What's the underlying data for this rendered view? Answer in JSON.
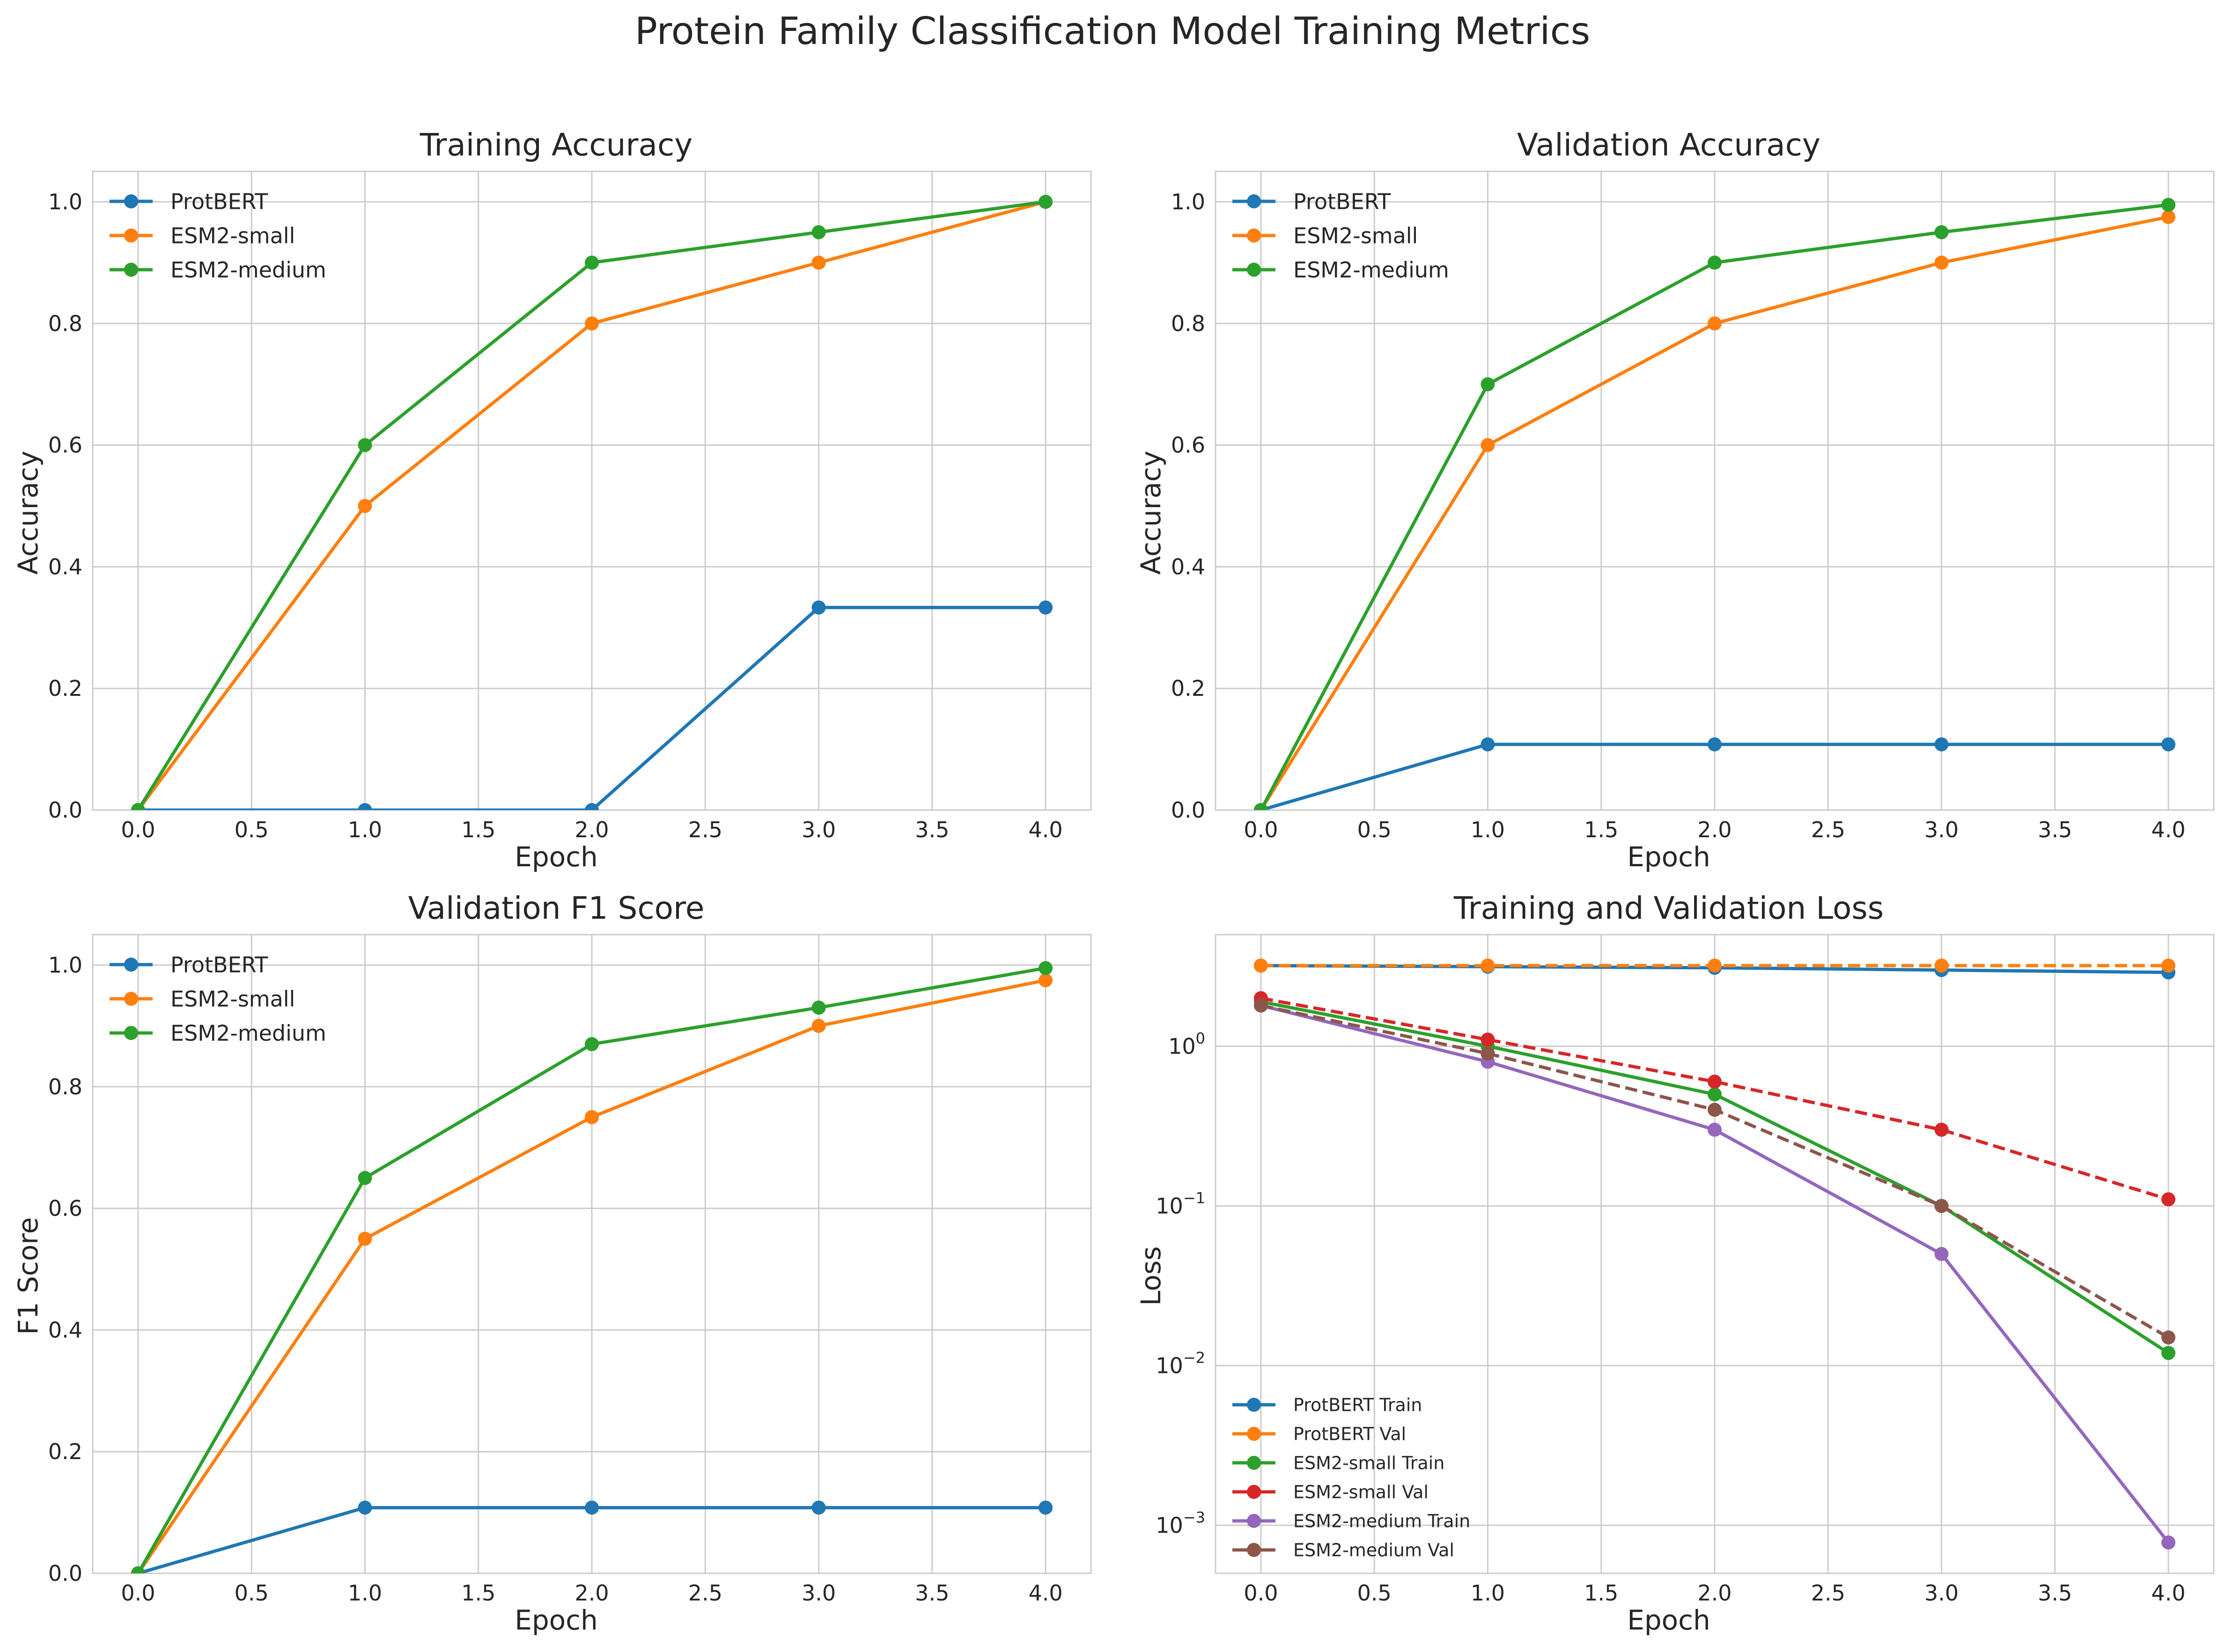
{
  "suptitle": "Protein Family Classification Model Training Metrics",
  "colors": {
    "blue": "#1f77b4",
    "orange": "#ff7f0e",
    "green": "#2ca02c",
    "red": "#d62728",
    "purple": "#9467bd",
    "brown": "#8c564b",
    "grid": "#cccccc"
  },
  "chart_data": [
    {
      "id": "train-acc",
      "type": "line",
      "title": "Training Accuracy",
      "xlabel": "Epoch",
      "ylabel": "Accuracy",
      "xlim": [
        -0.2,
        4.2
      ],
      "ylim": [
        0,
        1.05
      ],
      "yscale": "linear",
      "grid": true,
      "xticks": [
        "0.0",
        "0.5",
        "1.0",
        "1.5",
        "2.0",
        "2.5",
        "3.0",
        "3.5",
        "4.0"
      ],
      "yticks": [
        "0.0",
        "0.2",
        "0.4",
        "0.6",
        "0.8",
        "1.0"
      ],
      "legend_position": "top-left",
      "x": [
        0,
        1,
        2,
        3,
        4
      ],
      "series": [
        {
          "name": "ProtBERT",
          "color": "blue",
          "dashed": false,
          "values": [
            0.0,
            0.0,
            0.0,
            0.333,
            0.333
          ]
        },
        {
          "name": "ESM2-small",
          "color": "orange",
          "dashed": false,
          "values": [
            0.0,
            0.5,
            0.8,
            0.9,
            1.0
          ]
        },
        {
          "name": "ESM2-medium",
          "color": "green",
          "dashed": false,
          "values": [
            0.0,
            0.6,
            0.9,
            0.95,
            1.0
          ]
        }
      ]
    },
    {
      "id": "val-acc",
      "type": "line",
      "title": "Validation Accuracy",
      "xlabel": "Epoch",
      "ylabel": "Accuracy",
      "xlim": [
        -0.2,
        4.2
      ],
      "ylim": [
        0,
        1.05
      ],
      "yscale": "linear",
      "grid": true,
      "xticks": [
        "0.0",
        "0.5",
        "1.0",
        "1.5",
        "2.0",
        "2.5",
        "3.0",
        "3.5",
        "4.0"
      ],
      "yticks": [
        "0.0",
        "0.2",
        "0.4",
        "0.6",
        "0.8",
        "1.0"
      ],
      "legend_position": "top-left",
      "x": [
        0,
        1,
        2,
        3,
        4
      ],
      "series": [
        {
          "name": "ProtBERT",
          "color": "blue",
          "dashed": false,
          "values": [
            0.0,
            0.108,
            0.108,
            0.108,
            0.108
          ]
        },
        {
          "name": "ESM2-small",
          "color": "orange",
          "dashed": false,
          "values": [
            0.0,
            0.6,
            0.8,
            0.9,
            0.975
          ]
        },
        {
          "name": "ESM2-medium",
          "color": "green",
          "dashed": false,
          "values": [
            0.0,
            0.7,
            0.9,
            0.95,
            0.995
          ]
        }
      ]
    },
    {
      "id": "val-f1",
      "type": "line",
      "title": "Validation F1 Score",
      "xlabel": "Epoch",
      "ylabel": "F1 Score",
      "xlim": [
        -0.2,
        4.2
      ],
      "ylim": [
        0,
        1.05
      ],
      "yscale": "linear",
      "grid": true,
      "xticks": [
        "0.0",
        "0.5",
        "1.0",
        "1.5",
        "2.0",
        "2.5",
        "3.0",
        "3.5",
        "4.0"
      ],
      "yticks": [
        "0.0",
        "0.2",
        "0.4",
        "0.6",
        "0.8",
        "1.0"
      ],
      "legend_position": "top-left",
      "x": [
        0,
        1,
        2,
        3,
        4
      ],
      "series": [
        {
          "name": "ProtBERT",
          "color": "blue",
          "dashed": false,
          "values": [
            0.0,
            0.108,
            0.108,
            0.108,
            0.108
          ]
        },
        {
          "name": "ESM2-small",
          "color": "orange",
          "dashed": false,
          "values": [
            0.0,
            0.55,
            0.75,
            0.9,
            0.975
          ]
        },
        {
          "name": "ESM2-medium",
          "color": "green",
          "dashed": false,
          "values": [
            0.0,
            0.65,
            0.87,
            0.93,
            0.995
          ]
        }
      ]
    },
    {
      "id": "loss",
      "type": "line",
      "title": "Training and Validation Loss",
      "xlabel": "Epoch",
      "ylabel": "Loss",
      "xlim": [
        -0.2,
        4.2
      ],
      "ylim": [
        0.0005,
        5.0
      ],
      "yscale": "log",
      "grid": true,
      "xticks": [
        "0.0",
        "0.5",
        "1.0",
        "1.5",
        "2.0",
        "2.5",
        "3.0",
        "3.5",
        "4.0"
      ],
      "yticks": [
        "10^0",
        "10^-1",
        "10^-2",
        "10^-3"
      ],
      "legend_position": "bottom-left",
      "x": [
        0,
        1,
        2,
        3,
        4
      ],
      "series": [
        {
          "name": "ProtBERT Train",
          "color": "blue",
          "dashed": false,
          "values": [
            3.2,
            3.15,
            3.1,
            3.0,
            2.9
          ]
        },
        {
          "name": "ProtBERT Val",
          "color": "orange",
          "dashed": true,
          "values": [
            3.2,
            3.2,
            3.2,
            3.2,
            3.2
          ]
        },
        {
          "name": "ESM2-small Train",
          "color": "green",
          "dashed": false,
          "values": [
            1.9,
            1.0,
            0.5,
            0.1,
            0.012
          ]
        },
        {
          "name": "ESM2-small Val",
          "color": "red",
          "dashed": true,
          "values": [
            2.0,
            1.1,
            0.6,
            0.3,
            0.11
          ]
        },
        {
          "name": "ESM2-medium Train",
          "color": "purple",
          "dashed": false,
          "values": [
            1.8,
            0.8,
            0.3,
            0.05,
            0.00078
          ]
        },
        {
          "name": "ESM2-medium Val",
          "color": "brown",
          "dashed": true,
          "values": [
            1.8,
            0.9,
            0.4,
            0.1,
            0.015
          ]
        }
      ]
    }
  ]
}
